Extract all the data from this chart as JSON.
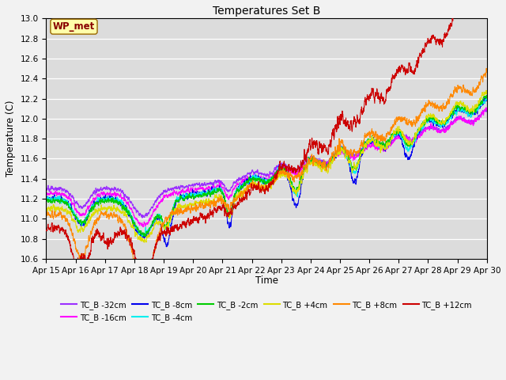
{
  "title": "Temperatures Set B",
  "xlabel": "Time",
  "ylabel": "Temperature (C)",
  "ylim": [
    10.6,
    13.0
  ],
  "x_tick_labels": [
    "Apr 15",
    "Apr 16",
    "Apr 17",
    "Apr 18",
    "Apr 19",
    "Apr 20",
    "Apr 21",
    "Apr 22",
    "Apr 23",
    "Apr 24",
    "Apr 25",
    "Apr 26",
    "Apr 27",
    "Apr 28",
    "Apr 29",
    "Apr 30"
  ],
  "legend_entries": [
    {
      "label": "TC_B -32cm",
      "color": "#9B30FF"
    },
    {
      "label": "TC_B -16cm",
      "color": "#FF00FF"
    },
    {
      "label": "TC_B -8cm",
      "color": "#0000EE"
    },
    {
      "label": "TC_B -4cm",
      "color": "#00EEEE"
    },
    {
      "label": "TC_B -2cm",
      "color": "#00CC00"
    },
    {
      "label": "TC_B +4cm",
      "color": "#DDDD00"
    },
    {
      "label": "TC_B +8cm",
      "color": "#FF8800"
    },
    {
      "label": "TC_B +12cm",
      "color": "#CC0000"
    }
  ],
  "wp_met_box_facecolor": "#FFFFAA",
  "wp_met_box_edgecolor": "#996600",
  "wp_met_text_color": "#880000",
  "plot_bg_color": "#DCDCDC",
  "fig_bg_color": "#F2F2F2",
  "grid_color": "#FFFFFF",
  "n_points": 4320
}
